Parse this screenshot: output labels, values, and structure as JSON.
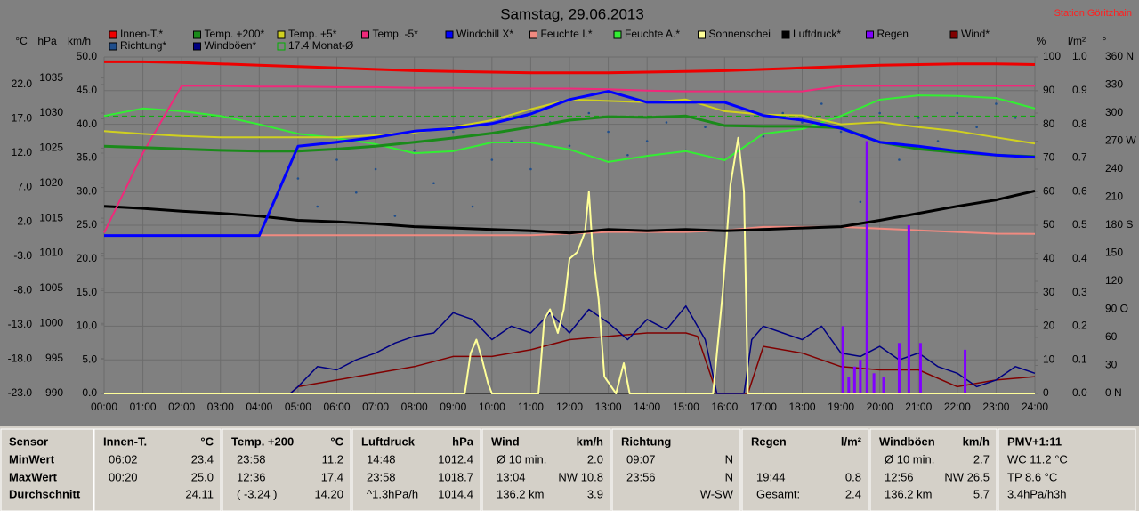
{
  "chart_data": {
    "type": "line",
    "title": "Samstag, 29.06.2013",
    "station": "Station Göritzhain",
    "x": [
      0,
      1,
      2,
      3,
      4,
      5,
      6,
      7,
      8,
      9,
      10,
      11,
      12,
      13,
      14,
      15,
      16,
      17,
      18,
      19,
      20,
      21,
      22,
      23,
      24
    ],
    "xlim": [
      0,
      24
    ],
    "xticks": [
      {
        "value": 0,
        "label": "00:00"
      },
      {
        "value": 1,
        "label": "01:00"
      },
      {
        "value": 2,
        "label": "02:00"
      },
      {
        "value": 3,
        "label": "03:00"
      },
      {
        "value": 4,
        "label": "04:00"
      },
      {
        "value": 5,
        "label": "05:00"
      },
      {
        "value": 6,
        "label": "06:00"
      },
      {
        "value": 7,
        "label": "07:00"
      },
      {
        "value": 8,
        "label": "08:00"
      },
      {
        "value": 9,
        "label": "09:00"
      },
      {
        "value": 10,
        "label": "10:00"
      },
      {
        "value": 11,
        "label": "11:00"
      },
      {
        "value": 12,
        "label": "12:00"
      },
      {
        "value": 13,
        "label": "13:00"
      },
      {
        "value": 14,
        "label": "14:00"
      },
      {
        "value": 15,
        "label": "15:00"
      },
      {
        "value": 16,
        "label": "16:00"
      },
      {
        "value": 17,
        "label": "17:00"
      },
      {
        "value": 18,
        "label": "18:00"
      },
      {
        "value": 19,
        "label": "19:00"
      },
      {
        "value": 20,
        "label": "20:00"
      },
      {
        "value": 21,
        "label": "21:00"
      },
      {
        "value": 22,
        "label": "22:00"
      },
      {
        "value": 23,
        "label": "23:00"
      },
      {
        "value": 24,
        "label": "24:00"
      }
    ],
    "axes": {
      "temp": {
        "unit": "°C",
        "lim": [
          -23,
          26
        ],
        "ticks": [
          {
            "value": -23,
            "label": "-23.0"
          },
          {
            "value": -18,
            "label": "-18.0"
          },
          {
            "value": -13,
            "label": "-13.0"
          },
          {
            "value": -8,
            "label": "-8.0"
          },
          {
            "value": -3,
            "label": "-3.0"
          },
          {
            "value": 2,
            "label": "2.0"
          },
          {
            "value": 7,
            "label": "7.0"
          },
          {
            "value": 12,
            "label": "12.0"
          },
          {
            "value": 17,
            "label": "17.0"
          },
          {
            "value": 22,
            "label": "22.0"
          }
        ]
      },
      "hpa": {
        "unit": "hPa",
        "lim": [
          990,
          1038
        ],
        "ticks": [
          990,
          995,
          1000,
          1005,
          1010,
          1015,
          1020,
          1025,
          1030,
          1035
        ]
      },
      "kmh": {
        "unit": "km/h",
        "lim": [
          0,
          50
        ],
        "grid": true,
        "ticks": [
          {
            "value": 0,
            "label": "0.0"
          },
          {
            "value": 5,
            "label": "5.0"
          },
          {
            "value": 10,
            "label": "10.0"
          },
          {
            "value": 15,
            "label": "15.0"
          },
          {
            "value": 20,
            "label": "20.0"
          },
          {
            "value": 25,
            "label": "25.0"
          },
          {
            "value": 30,
            "label": "30.0"
          },
          {
            "value": 35,
            "label": "35.0"
          },
          {
            "value": 40,
            "label": "40.0"
          },
          {
            "value": 45,
            "label": "45.0"
          },
          {
            "value": 50,
            "label": "50.0"
          }
        ]
      },
      "pct": {
        "unit": "%",
        "lim": [
          0,
          100
        ],
        "ticks": [
          0,
          10,
          20,
          30,
          40,
          50,
          60,
          70,
          80,
          90,
          100
        ]
      },
      "rain": {
        "unit": "l/m²",
        "lim": [
          0,
          1
        ],
        "ticks": [
          {
            "value": 0,
            "label": "0.0"
          },
          0.1,
          0.2,
          0.3,
          0.4,
          0.5,
          0.6,
          0.7,
          0.8,
          0.9,
          {
            "value": 1,
            "label": "1.0"
          }
        ]
      },
      "deg": {
        "unit": "°",
        "lim": [
          0,
          360
        ],
        "ticks": [
          {
            "value": 0,
            "label": "0  N"
          },
          30,
          60,
          {
            "value": 90,
            "label": "90  O"
          },
          120,
          150,
          {
            "value": 180,
            "label": "180 S"
          },
          210,
          240,
          {
            "value": 270,
            "label": "270 W"
          },
          300,
          330,
          {
            "value": 360,
            "label": "360 N"
          }
        ]
      }
    },
    "series": [
      {
        "name": "Innen-T.*",
        "color": "#ee0000",
        "axis": "temp",
        "type": "line",
        "width": 3,
        "values": [
          25.3,
          25.3,
          25.2,
          25.0,
          24.8,
          24.6,
          24.4,
          24.2,
          24.0,
          23.9,
          23.8,
          23.7,
          23.7,
          23.7,
          23.8,
          23.9,
          24.0,
          24.2,
          24.4,
          24.6,
          24.8,
          24.9,
          25.0,
          25.0,
          24.9
        ]
      },
      {
        "name": "Temp. +200*",
        "color": "#1a8a1a",
        "axis": "temp",
        "type": "line",
        "width": 3,
        "values": [
          13.0,
          12.8,
          12.6,
          12.4,
          12.3,
          12.3,
          12.6,
          13.0,
          13.6,
          14.2,
          14.9,
          15.8,
          16.8,
          17.3,
          17.2,
          17.4,
          16.0,
          15.9,
          15.9,
          15.7,
          13.6,
          12.6,
          12.1,
          11.7,
          11.5
        ]
      },
      {
        "name": "Temp. +5*",
        "color": "#d0d020",
        "axis": "temp",
        "type": "line",
        "width": 2,
        "values": [
          15.2,
          14.8,
          14.5,
          14.3,
          14.3,
          14.3,
          14.3,
          14.6,
          15.0,
          15.8,
          16.8,
          18.4,
          19.8,
          19.6,
          19.4,
          19.8,
          18.1,
          17.6,
          17.5,
          16.2,
          16.5,
          15.8,
          15.2,
          14.3,
          13.4
        ]
      },
      {
        "name": "Temp. -5*",
        "color": "#f0287a",
        "axis": "temp",
        "type": "line",
        "width": 2,
        "values": [
          0.4,
          12,
          21.8,
          21.8,
          21.7,
          21.7,
          21.6,
          21.6,
          21.5,
          21.5,
          21.4,
          21.4,
          21.4,
          21.3,
          21.1,
          21.0,
          21.0,
          21.0,
          21.0,
          21.8,
          21.8,
          21.8,
          21.8,
          21.8,
          21.8
        ]
      },
      {
        "name": "Windchill X*",
        "color": "#0000ff",
        "axis": "temp",
        "type": "line",
        "width": 3,
        "values": [
          0.0,
          0.0,
          0.0,
          0.0,
          0.0,
          13.0,
          13.6,
          14.3,
          15.2,
          15.6,
          16.3,
          17.7,
          19.8,
          21.0,
          19.4,
          19.4,
          19.4,
          17.5,
          16.8,
          15.6,
          13.6,
          13.0,
          12.3,
          11.7,
          11.4
        ]
      },
      {
        "name": "Feuchte I.*",
        "color": "#f08a80",
        "axis": "pct",
        "type": "line",
        "width": 2,
        "values": [
          47,
          47,
          47,
          47,
          47,
          47,
          47,
          47,
          47,
          47,
          47,
          47,
          47.5,
          48,
          48,
          48,
          48.5,
          49.5,
          49.5,
          49.5,
          49,
          48.5,
          48,
          47.5,
          47.4
        ]
      },
      {
        "name": "Feuchte A.*",
        "color": "#33ee33",
        "axis": "pct",
        "type": "line",
        "width": 2,
        "values": [
          82.5,
          84.7,
          83.9,
          82.5,
          80.0,
          77.2,
          75.9,
          74.1,
          71.4,
          72.0,
          74.6,
          74.6,
          72.5,
          68.8,
          70.6,
          72.0,
          69.3,
          77.2,
          78.6,
          82.5,
          87.3,
          88.6,
          88.4,
          87.8,
          84.7
        ]
      },
      {
        "name": "Sonnenschei",
        "color": "#ffff99",
        "axis": "pct",
        "type": "line",
        "width": 2,
        "x": [
          0,
          9.3,
          9.45,
          9.6,
          9.75,
          9.9,
          10.0,
          11.2,
          11.35,
          11.5,
          11.7,
          11.85,
          12.0,
          12.2,
          12.4,
          12.5,
          12.6,
          12.75,
          12.9,
          13.2,
          13.4,
          13.55,
          15.7,
          15.95,
          16.15,
          16.35,
          16.5,
          16.6,
          24
        ],
        "values": [
          0,
          0,
          12,
          16,
          10,
          3,
          0,
          0,
          22,
          25,
          18,
          25,
          40,
          42,
          48,
          60,
          42,
          28,
          5,
          0,
          9,
          0,
          0,
          30,
          62,
          76,
          60,
          0,
          0
        ]
      },
      {
        "name": "Luftdruck*",
        "color": "#000000",
        "axis": "hpa",
        "type": "line",
        "width": 3,
        "values": [
          1016.7,
          1016.4,
          1016.0,
          1015.7,
          1015.3,
          1014.7,
          1014.5,
          1014.2,
          1013.8,
          1013.6,
          1013.4,
          1013.2,
          1012.9,
          1013.4,
          1013.2,
          1013.4,
          1013.2,
          1013.4,
          1013.6,
          1013.8,
          1014.7,
          1015.7,
          1016.7,
          1017.6,
          1018.9
        ]
      },
      {
        "name": "Regen",
        "color": "#8000ff",
        "axis": "rain",
        "type": "bar",
        "x": [
          19.05,
          19.2,
          19.35,
          19.5,
          19.67,
          19.85,
          20.1,
          20.5,
          20.75,
          21.05,
          22.2
        ],
        "values": [
          0.2,
          0.05,
          0.08,
          0.1,
          0.75,
          0.06,
          0.05,
          0.15,
          0.5,
          0.15,
          0.13
        ]
      },
      {
        "name": "Wind*",
        "color": "#800000",
        "axis": "kmh",
        "type": "line",
        "width": 1.5,
        "x": [
          0,
          4.8,
          5,
          6,
          7,
          8,
          9,
          10,
          11,
          12,
          13,
          14,
          15,
          15.3,
          15.8,
          16.6,
          17,
          18,
          19,
          20,
          21,
          22,
          23,
          24
        ],
        "values": [
          0,
          0,
          1.0,
          2.0,
          3.0,
          4.0,
          5.5,
          5.5,
          6.5,
          8.0,
          8.5,
          9.0,
          9.0,
          8.5,
          0,
          0,
          7.0,
          6.0,
          4.0,
          3.5,
          3.5,
          1.0,
          2.0,
          2.5
        ]
      },
      {
        "name": "Richtung*",
        "color": "#1f4e8c",
        "axis": "deg",
        "type": "scatter",
        "x": [
          5,
          5.5,
          6,
          6.5,
          7,
          7.5,
          8,
          8.5,
          9,
          9.5,
          10,
          10.5,
          11,
          11.5,
          12,
          12.5,
          13,
          13.5,
          14,
          14.5,
          15,
          15.5,
          17,
          17.5,
          18,
          18.5,
          19,
          19.5,
          20,
          20.5,
          21,
          21.5,
          22,
          22.5,
          23,
          23.5
        ],
        "values": [
          230,
          200,
          250,
          215,
          240,
          190,
          260,
          225,
          280,
          200,
          250,
          270,
          240,
          290,
          265,
          300,
          280,
          255,
          270,
          290,
          260,
          285,
          275,
          300,
          290,
          310,
          280,
          205,
          300,
          250,
          295,
          270,
          300,
          285,
          310,
          295
        ]
      },
      {
        "name": "Windböen*",
        "color": "#000080",
        "axis": "kmh",
        "type": "line",
        "width": 1.5,
        "x": [
          0,
          4.8,
          5,
          5.5,
          6,
          6.5,
          7,
          7.5,
          8,
          8.5,
          9,
          9.5,
          10,
          10.5,
          11,
          11.5,
          12,
          12.5,
          13,
          13.5,
          14,
          14.5,
          15,
          15.5,
          15.8,
          16.5,
          16.7,
          17,
          17.5,
          18,
          18.5,
          19,
          19.5,
          20,
          20.5,
          21,
          21.5,
          22,
          22.5,
          23,
          23.5,
          24
        ],
        "values": [
          0,
          0,
          1.0,
          4.0,
          3.5,
          5.0,
          6.0,
          7.5,
          8.5,
          9.0,
          12.0,
          11.0,
          8.0,
          10.0,
          9.0,
          12.0,
          9.0,
          12.5,
          10.5,
          8.0,
          11.0,
          9.5,
          13.0,
          8.0,
          0,
          0,
          8.0,
          10.0,
          9.0,
          8.0,
          10.0,
          6.0,
          5.5,
          7.0,
          5.0,
          6.0,
          4.0,
          3.0,
          1.0,
          2.0,
          4.0,
          3.0
        ]
      }
    ],
    "reference": {
      "name": "17.4 Monat-Ø",
      "color": "#00b000",
      "axis": "temp",
      "value": 17.4
    }
  },
  "table": {
    "row_labels": [
      "Sensor",
      "MinWert",
      "MaxWert",
      "Durchschnitt"
    ],
    "columns": [
      {
        "title": "Innen-T.",
        "unit": "°C",
        "cells": [
          [
            "06:02",
            "23.4"
          ],
          [
            "00:20",
            "25.0"
          ],
          [
            null,
            "24.11"
          ]
        ]
      },
      {
        "title": "Temp. +200",
        "unit": "°C",
        "cells": [
          [
            "23:58",
            "11.2"
          ],
          [
            "12:36",
            "17.4"
          ],
          [
            "( -3.24 )",
            "14.20"
          ]
        ]
      },
      {
        "title": "Luftdruck",
        "unit": "hPa",
        "cells": [
          [
            "14:48",
            "1012.4"
          ],
          [
            "23:58",
            "1018.7"
          ],
          [
            "^1.3hPa/h",
            "1014.4"
          ]
        ]
      },
      {
        "title": "Wind",
        "unit": "km/h",
        "cells": [
          [
            "Ø 10 min.",
            "2.0"
          ],
          [
            "13:04",
            "NW 10.8"
          ],
          [
            "136.2 km",
            "3.9"
          ]
        ]
      },
      {
        "title": "Richtung",
        "cells": [
          [
            "09:07",
            "N"
          ],
          [
            "23:56",
            "N"
          ],
          [
            null,
            "W-SW"
          ]
        ]
      },
      {
        "title": "Regen",
        "unit": "l/m²",
        "cells": [
          [
            null,
            null
          ],
          [
            "19:44",
            "0.8"
          ],
          [
            "Gesamt:",
            "2.4"
          ]
        ]
      },
      {
        "title": "Windböen",
        "unit": "km/h",
        "cells": [
          [
            "Ø 10 min.",
            "2.7"
          ],
          [
            "12:56",
            "NW 26.5"
          ],
          [
            "136.2 km",
            "5.7"
          ]
        ]
      },
      {
        "title": "PMV+1:11",
        "lines": [
          "WC 11.2 °C",
          "TP 8.6 °C",
          "3.4hPa/h3h"
        ]
      }
    ]
  }
}
